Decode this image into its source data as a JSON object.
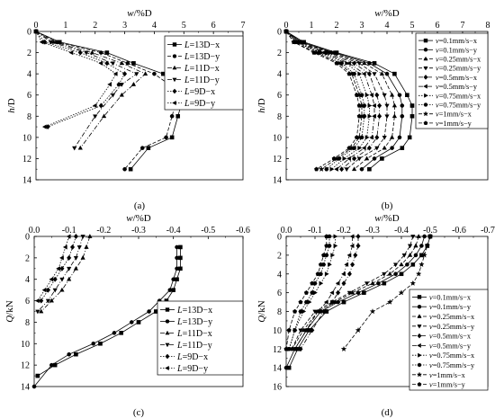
{
  "chart_data": [
    {
      "type": "line",
      "panel_label": "(a)",
      "xlabel": "w/%D",
      "ylabel": "h/D",
      "xlim": [
        0,
        7
      ],
      "ylim": [
        0,
        14
      ],
      "x_axis_position": "top",
      "y_inverted": true,
      "x_ticks": [
        "0",
        "1",
        "2",
        "3",
        "4",
        "5",
        "6",
        "7"
      ],
      "y_ticks": [
        "0",
        "2",
        "4",
        "6",
        "8",
        "10",
        "12",
        "14"
      ],
      "legend": "top-right",
      "series": [
        {
          "name": "L=13D−x",
          "marker": "square",
          "dash": "solid",
          "x": [
            0,
            0.8,
            2.4,
            3.3,
            4.3,
            4.8,
            4.9,
            4.9,
            4.8,
            4.6,
            3.8,
            3.2
          ],
          "y": [
            0,
            1,
            2,
            3,
            4,
            5,
            6,
            7,
            8,
            10,
            11,
            13
          ]
        },
        {
          "name": "L=13D−y",
          "marker": "circle",
          "dash": "dashed",
          "x": [
            0,
            0.7,
            2.2,
            3.1,
            4.0,
            4.5,
            4.6,
            4.7,
            4.6,
            4.4,
            3.6,
            3.0
          ],
          "y": [
            0,
            1,
            2,
            3,
            4,
            5,
            6,
            7,
            8,
            10,
            11,
            13
          ]
        },
        {
          "name": "L=11D−x",
          "marker": "triangle-up",
          "dash": "dashdot",
          "x": [
            0,
            0.6,
            1.9,
            2.9,
            3.7,
            3.3,
            2.9,
            2.3,
            1.5
          ],
          "y": [
            0,
            1,
            2,
            3,
            4,
            5,
            6,
            8,
            11
          ]
        },
        {
          "name": "L=11D−y",
          "marker": "triangle-down",
          "dash": "dashdot",
          "x": [
            0,
            0.5,
            1.7,
            2.6,
            3.4,
            2.9,
            2.6,
            2.0,
            1.3
          ],
          "y": [
            0,
            1,
            2,
            3,
            4,
            5,
            6,
            8,
            11
          ]
        },
        {
          "name": "L=9D−x",
          "marker": "diamond",
          "dash": "dotted",
          "x": [
            0,
            0.3,
            1.5,
            2.4,
            3.0,
            2.8,
            2.2,
            0.4
          ],
          "y": [
            0,
            1,
            2,
            3,
            4,
            5,
            7,
            9
          ]
        },
        {
          "name": "L=9D−y",
          "marker": "triangle-left",
          "dash": "dotted",
          "x": [
            0,
            0.2,
            1.2,
            2.2,
            2.7,
            2.5,
            2.0,
            0.3
          ],
          "y": [
            0,
            1,
            2,
            3,
            4,
            5,
            7,
            9
          ]
        }
      ]
    },
    {
      "type": "line",
      "panel_label": "(b)",
      "xlabel": "w/%D",
      "ylabel": "h/D",
      "xlim": [
        0,
        8
      ],
      "ylim": [
        0,
        14
      ],
      "x_axis_position": "top",
      "y_inverted": true,
      "x_ticks": [
        "0",
        "1",
        "2",
        "3",
        "4",
        "5",
        "6",
        "7",
        "8"
      ],
      "y_ticks": [
        "0",
        "2",
        "4",
        "6",
        "8",
        "10",
        "12",
        "14"
      ],
      "legend": "top-right",
      "series": [
        {
          "name": "v=0.1mm/s−x",
          "marker": "square",
          "dash": "solid",
          "x": [
            0,
            0.7,
            2.0,
            3.5,
            4.3,
            4.8,
            5.0,
            5.0,
            4.9,
            4.6,
            3.8,
            3.3
          ],
          "y": [
            0,
            1,
            2,
            3,
            4,
            6,
            7,
            8,
            10,
            11,
            12,
            13
          ]
        },
        {
          "name": "v=0.1mm/s−y",
          "marker": "circle",
          "dash": "solid",
          "x": [
            0,
            0.6,
            1.9,
            3.3,
            4.0,
            4.5,
            4.6,
            4.6,
            4.5,
            4.2,
            3.5,
            3.0
          ],
          "y": [
            0,
            1,
            2,
            3,
            4,
            6,
            7,
            8,
            10,
            11,
            12,
            13
          ]
        },
        {
          "name": "v=0.25mm/s−x",
          "marker": "triangle-up",
          "dash": "dashed",
          "x": [
            0,
            0.6,
            1.8,
            3.1,
            3.8,
            4.2,
            4.3,
            4.3,
            4.2,
            3.9,
            3.2,
            2.7
          ],
          "y": [
            0,
            1,
            2,
            3,
            4,
            6,
            7,
            8,
            10,
            11,
            12,
            13
          ]
        },
        {
          "name": "v=0.25mm/s−y",
          "marker": "triangle-down",
          "dash": "dashed",
          "x": [
            0,
            0.5,
            1.7,
            2.9,
            3.5,
            3.9,
            4.0,
            4.0,
            3.9,
            3.6,
            2.9,
            2.4
          ],
          "y": [
            0,
            1,
            2,
            3,
            4,
            6,
            7,
            8,
            10,
            11,
            12,
            13
          ]
        },
        {
          "name": "v=0.5mm/s−x",
          "marker": "diamond",
          "dash": "dashdot",
          "x": [
            0,
            0.5,
            1.6,
            2.7,
            3.3,
            3.6,
            3.7,
            3.7,
            3.6,
            3.3,
            2.7,
            2.2
          ],
          "y": [
            0,
            1,
            2,
            3,
            4,
            6,
            7,
            8,
            10,
            11,
            12,
            13
          ]
        },
        {
          "name": "v=0.5mm/s−y",
          "marker": "triangle-left",
          "dash": "dashdot",
          "x": [
            0,
            0.4,
            1.5,
            2.5,
            3.1,
            3.4,
            3.5,
            3.5,
            3.4,
            3.1,
            2.5,
            2.0
          ],
          "y": [
            0,
            1,
            2,
            3,
            4,
            6,
            7,
            8,
            10,
            11,
            12,
            13
          ]
        },
        {
          "name": "v=0.75mm/s−x",
          "marker": "triangle-right",
          "dash": "dotted",
          "x": [
            0,
            0.4,
            1.4,
            2.4,
            2.9,
            3.2,
            3.3,
            3.3,
            3.2,
            2.9,
            2.3,
            1.8
          ],
          "y": [
            0,
            1,
            2,
            3,
            4,
            6,
            7,
            8,
            10,
            11,
            12,
            13
          ]
        },
        {
          "name": "v=0.75mm/s−y",
          "marker": "hexagon",
          "dash": "dotted",
          "x": [
            0,
            0.4,
            1.3,
            2.2,
            2.7,
            3.0,
            3.1,
            3.1,
            3.0,
            2.7,
            2.1,
            1.6
          ],
          "y": [
            0,
            1,
            2,
            3,
            4,
            6,
            7,
            8,
            10,
            11,
            12,
            13
          ]
        },
        {
          "name": "v=1mm/s−x",
          "marker": "star",
          "dash": "dashed",
          "x": [
            0,
            0.3,
            1.2,
            2.1,
            2.6,
            2.9,
            3.0,
            3.0,
            2.9,
            2.6,
            2.0,
            1.4
          ],
          "y": [
            0,
            1,
            2,
            3,
            4,
            6,
            7,
            8,
            10,
            11,
            12,
            13
          ]
        },
        {
          "name": "v=1mm/s−y",
          "marker": "pentagon",
          "dash": "dashed",
          "x": [
            0,
            0.3,
            1.1,
            2.0,
            2.5,
            2.8,
            2.9,
            2.9,
            2.8,
            2.5,
            1.9,
            1.2
          ],
          "y": [
            0,
            1,
            2,
            3,
            4,
            6,
            7,
            8,
            10,
            11,
            12,
            13
          ]
        }
      ]
    },
    {
      "type": "line",
      "panel_label": "(c)",
      "xlabel": "w/%D",
      "ylabel": "Q/kN",
      "xlim": [
        0,
        -0.6
      ],
      "ylim": [
        0,
        14
      ],
      "x_axis_position": "top",
      "y_inverted": true,
      "x_ticks": [
        "0.0",
        "-0.1",
        "-0.2",
        "-0.3",
        "-0.4",
        "-0.5",
        "-0.6"
      ],
      "y_ticks": [
        "0",
        "2",
        "4",
        "6",
        "8",
        "10",
        "12",
        "14"
      ],
      "legend": "bottom-right",
      "series": [
        {
          "name": "L=13D−x",
          "marker": "square",
          "dash": "solid",
          "x": [
            -0.42,
            -0.42,
            -0.42,
            -0.41,
            -0.4,
            -0.38,
            -0.35,
            -0.3,
            -0.25,
            -0.19,
            -0.12,
            -0.06,
            -0.01
          ],
          "y": [
            1,
            2,
            3,
            4,
            5,
            6,
            7,
            8,
            9,
            10,
            11,
            12,
            13
          ]
        },
        {
          "name": "L=13D−y",
          "marker": "circle",
          "dash": "solid",
          "x": [
            -0.41,
            -0.41,
            -0.41,
            -0.4,
            -0.39,
            -0.36,
            -0.33,
            -0.28,
            -0.23,
            -0.17,
            -0.1,
            -0.05,
            0.0
          ],
          "y": [
            1,
            2,
            3,
            4,
            5,
            6,
            7,
            8,
            9,
            10,
            11,
            12,
            14
          ]
        },
        {
          "name": "L=11D−x",
          "marker": "triangle-up",
          "dash": "dashdot",
          "x": [
            -0.16,
            -0.15,
            -0.14,
            -0.12,
            -0.1,
            -0.08,
            -0.05,
            -0.02
          ],
          "y": [
            0,
            1,
            2,
            3,
            4,
            5,
            6,
            7
          ]
        },
        {
          "name": "L=11D−y",
          "marker": "triangle-down",
          "dash": "dashdot",
          "x": [
            -0.14,
            -0.13,
            -0.12,
            -0.1,
            -0.08,
            -0.06,
            -0.04,
            -0.01
          ],
          "y": [
            0,
            1,
            2,
            3,
            4,
            5,
            6,
            7
          ]
        },
        {
          "name": "L=9D−x",
          "marker": "diamond",
          "dash": "dotted",
          "x": [
            -0.12,
            -0.11,
            -0.1,
            -0.08,
            -0.06,
            -0.04,
            -0.02
          ],
          "y": [
            0,
            1,
            2,
            3,
            4,
            5,
            6
          ]
        },
        {
          "name": "L=9D−y",
          "marker": "triangle-left",
          "dash": "dotted",
          "x": [
            -0.1,
            -0.09,
            -0.08,
            -0.07,
            -0.05,
            -0.03,
            -0.01
          ],
          "y": [
            0,
            1,
            2,
            3,
            4,
            5,
            6
          ]
        }
      ]
    },
    {
      "type": "line",
      "panel_label": "(d)",
      "xlabel": "w/%D",
      "ylabel": "Q/kN",
      "xlim": [
        0,
        -0.7
      ],
      "ylim": [
        0,
        16
      ],
      "x_axis_position": "top",
      "y_inverted": true,
      "x_ticks": [
        "0.0",
        "-0.1",
        "-0.2",
        "-0.3",
        "-0.4",
        "-0.5",
        "-0.6",
        "-0.7"
      ],
      "y_ticks": [
        "0",
        "2",
        "4",
        "6",
        "8",
        "10",
        "12",
        "14",
        "16"
      ],
      "legend": "bottom-right",
      "series": [
        {
          "name": "v=0.1mm/s−x",
          "marker": "square",
          "dash": "solid",
          "x": [
            -0.5,
            -0.49,
            -0.47,
            -0.44,
            -0.4,
            -0.34,
            -0.27,
            -0.2,
            -0.14,
            -0.08,
            -0.04,
            -0.01
          ],
          "y": [
            0,
            1,
            2,
            3,
            4,
            5,
            6,
            7,
            8,
            10,
            12,
            14
          ]
        },
        {
          "name": "v=0.1mm/s−y",
          "marker": "circle",
          "dash": "solid",
          "x": [
            -0.48,
            -0.47,
            -0.45,
            -0.42,
            -0.38,
            -0.32,
            -0.25,
            -0.18,
            -0.12,
            -0.07,
            -0.03,
            0.0
          ],
          "y": [
            0,
            1,
            2,
            3,
            4,
            5,
            6,
            7,
            8,
            10,
            12,
            14
          ]
        },
        {
          "name": "v=0.25mm/s−x",
          "marker": "triangle-up",
          "dash": "dashed",
          "x": [
            -0.46,
            -0.45,
            -0.43,
            -0.4,
            -0.36,
            -0.3,
            -0.23,
            -0.17,
            -0.11,
            -0.06,
            -0.02
          ],
          "y": [
            0,
            1,
            2,
            3,
            4,
            5,
            6,
            7,
            8,
            10,
            12
          ]
        },
        {
          "name": "v=0.25mm/s−y",
          "marker": "triangle-down",
          "dash": "dashed",
          "x": [
            -0.44,
            -0.43,
            -0.41,
            -0.38,
            -0.34,
            -0.28,
            -0.22,
            -0.16,
            -0.1,
            -0.05,
            -0.02
          ],
          "y": [
            0,
            1,
            2,
            3,
            4,
            5,
            6,
            7,
            8,
            10,
            12
          ]
        },
        {
          "name": "v=0.5mm/s−x",
          "marker": "diamond",
          "dash": "dashdot",
          "x": [
            -0.25,
            -0.25,
            -0.24,
            -0.23,
            -0.22,
            -0.2,
            -0.18,
            -0.16,
            -0.13,
            -0.09,
            -0.05
          ],
          "y": [
            0,
            1,
            2,
            3,
            4,
            5,
            6,
            7,
            8,
            10,
            12
          ]
        },
        {
          "name": "v=0.5mm/s−y",
          "marker": "triangle-left",
          "dash": "dashdot",
          "x": [
            -0.23,
            -0.23,
            -0.22,
            -0.21,
            -0.2,
            -0.18,
            -0.16,
            -0.14,
            -0.11,
            -0.07,
            -0.03
          ],
          "y": [
            0,
            1,
            2,
            3,
            4,
            5,
            6,
            7,
            8,
            10,
            12
          ]
        },
        {
          "name": "v=0.75mm/s−x",
          "marker": "triangle-right",
          "dash": "dotted",
          "x": [
            -0.17,
            -0.17,
            -0.16,
            -0.15,
            -0.14,
            -0.12,
            -0.1,
            -0.08,
            -0.06,
            -0.03,
            -0.01
          ],
          "y": [
            0,
            1,
            2,
            3,
            4,
            5,
            6,
            7,
            8,
            10,
            12
          ]
        },
        {
          "name": "v=0.75mm/s−y",
          "marker": "hexagon",
          "dash": "dotted",
          "x": [
            -0.15,
            -0.15,
            -0.14,
            -0.13,
            -0.12,
            -0.1,
            -0.09,
            -0.07,
            -0.05,
            -0.03,
            -0.01
          ],
          "y": [
            0,
            1,
            2,
            3,
            4,
            5,
            6,
            7,
            8,
            10,
            12
          ]
        },
        {
          "name": "v=1mm/s−x",
          "marker": "star",
          "dash": "dashed",
          "x": [
            -0.5,
            -0.49,
            -0.48,
            -0.47,
            -0.46,
            -0.44,
            -0.4,
            -0.36,
            -0.3,
            -0.25,
            -0.2
          ],
          "y": [
            0,
            1,
            2,
            3,
            4,
            5,
            6,
            7,
            8,
            10,
            12
          ]
        },
        {
          "name": "v=1mm/s−y",
          "marker": "pentagon",
          "dash": "dashed",
          "x": [
            -0.14,
            -0.14,
            -0.13,
            -0.12,
            -0.11,
            -0.09,
            -0.07,
            -0.05,
            -0.03,
            -0.01,
            0.0
          ],
          "y": [
            0,
            1,
            2,
            3,
            4,
            5,
            6,
            7,
            8,
            10,
            12
          ]
        }
      ]
    }
  ]
}
